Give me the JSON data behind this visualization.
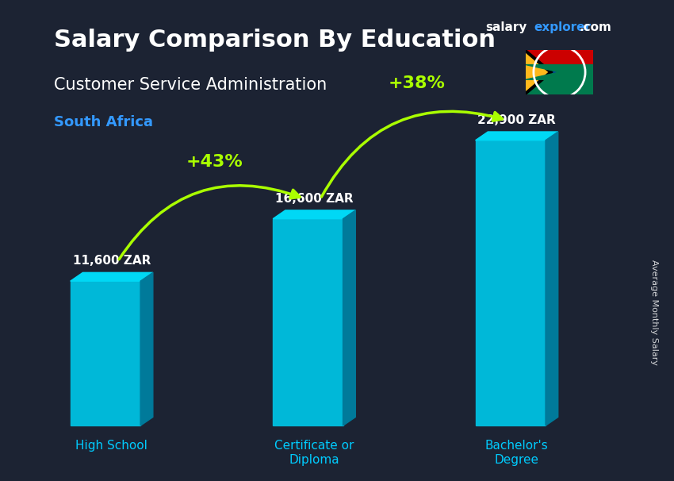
{
  "title": "Salary Comparison By Education",
  "subtitle": "Customer Service Administration",
  "country": "South Africa",
  "ylabel": "Average Monthly Salary",
  "categories": [
    "High School",
    "Certificate or\nDiploma",
    "Bachelor's\nDegree"
  ],
  "values": [
    11600,
    16600,
    22900
  ],
  "value_labels": [
    "11,600 ZAR",
    "16,600 ZAR",
    "22,900 ZAR"
  ],
  "pct_changes": [
    "+43%",
    "+38%"
  ],
  "bar_color_top": "#00d4f0",
  "bar_color_mid": "#00a8c8",
  "bar_color_bottom": "#0090b0",
  "bar_color_side": "#007fa0",
  "background_color": "#1a1a2e",
  "title_color": "#ffffff",
  "subtitle_color": "#ffffff",
  "country_color": "#00aaff",
  "value_label_color": "#ffffff",
  "xlabel_color": "#00ccff",
  "arrow_color": "#aaff00",
  "pct_color": "#aaff00",
  "site_text": "salary",
  "site_text2": "explorer",
  "site_text3": ".com",
  "bar_width": 0.45,
  "ylim": [
    0,
    28000
  ],
  "fig_width": 8.5,
  "fig_height": 6.06
}
